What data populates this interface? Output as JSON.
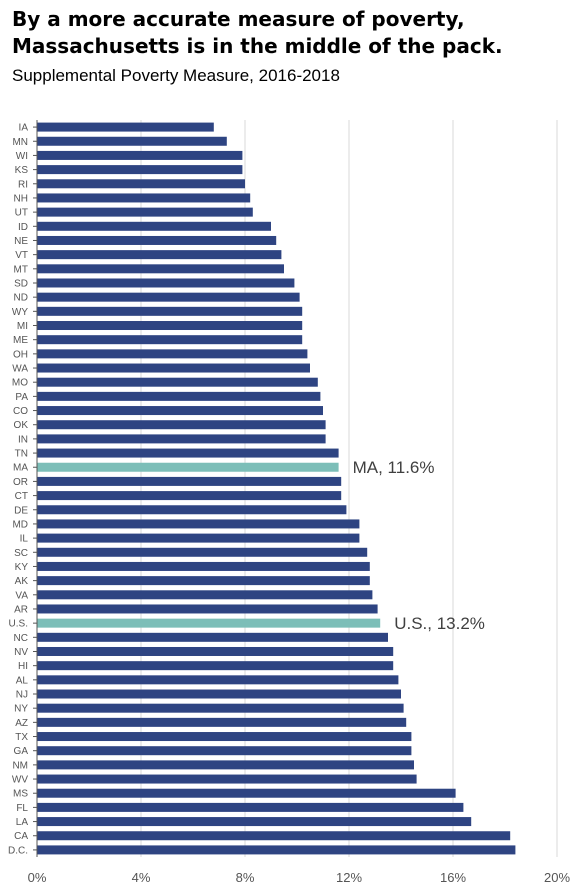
{
  "title": "By a more accurate measure of poverty, Massachusetts is in the middle of the pack.",
  "subtitle": "Supplemental Poverty Measure, 2016-2018",
  "colors": {
    "bar": "#2e4482",
    "highlight": "#7cbeb8",
    "grid": "#d9d9d9",
    "axis": "#555555"
  },
  "chart_data": {
    "type": "bar",
    "orientation": "horizontal",
    "title": "By a more accurate measure of poverty, Massachusetts is in the middle of the pack.",
    "subtitle": "Supplemental Poverty Measure, 2016-2018",
    "xlim": [
      0,
      20
    ],
    "xticks": [
      0,
      4,
      8,
      12,
      16,
      20
    ],
    "xtick_labels": [
      "0%",
      "4%",
      "8%",
      "12%",
      "16%",
      "20%"
    ],
    "grid": "vertical",
    "categories": [
      "IA",
      "MN",
      "WI",
      "KS",
      "RI",
      "NH",
      "UT",
      "ID",
      "NE",
      "VT",
      "MT",
      "SD",
      "ND",
      "WY",
      "MI",
      "ME",
      "OH",
      "WA",
      "MO",
      "PA",
      "CO",
      "OK",
      "IN",
      "TN",
      "MA",
      "OR",
      "CT",
      "DE",
      "MD",
      "IL",
      "SC",
      "KY",
      "AK",
      "VA",
      "AR",
      "U.S.",
      "NC",
      "NV",
      "HI",
      "AL",
      "NJ",
      "NY",
      "AZ",
      "TX",
      "GA",
      "NM",
      "WV",
      "MS",
      "FL",
      "LA",
      "CA",
      "D.C."
    ],
    "values": [
      6.8,
      7.3,
      7.9,
      7.9,
      8.0,
      8.2,
      8.3,
      9.0,
      9.2,
      9.4,
      9.5,
      9.9,
      10.1,
      10.2,
      10.2,
      10.2,
      10.4,
      10.5,
      10.8,
      10.9,
      11.0,
      11.1,
      11.1,
      11.6,
      11.6,
      11.7,
      11.7,
      11.9,
      12.4,
      12.4,
      12.7,
      12.8,
      12.8,
      12.9,
      13.1,
      13.2,
      13.5,
      13.7,
      13.7,
      13.9,
      14.0,
      14.1,
      14.2,
      14.4,
      14.4,
      14.5,
      14.6,
      16.1,
      16.4,
      16.7,
      18.2,
      18.4
    ],
    "highlighted": [
      "MA",
      "U.S."
    ],
    "annotations": [
      {
        "category": "MA",
        "text": "MA, 11.6%"
      },
      {
        "category": "U.S.",
        "text": "U.S., 13.2%"
      }
    ]
  }
}
